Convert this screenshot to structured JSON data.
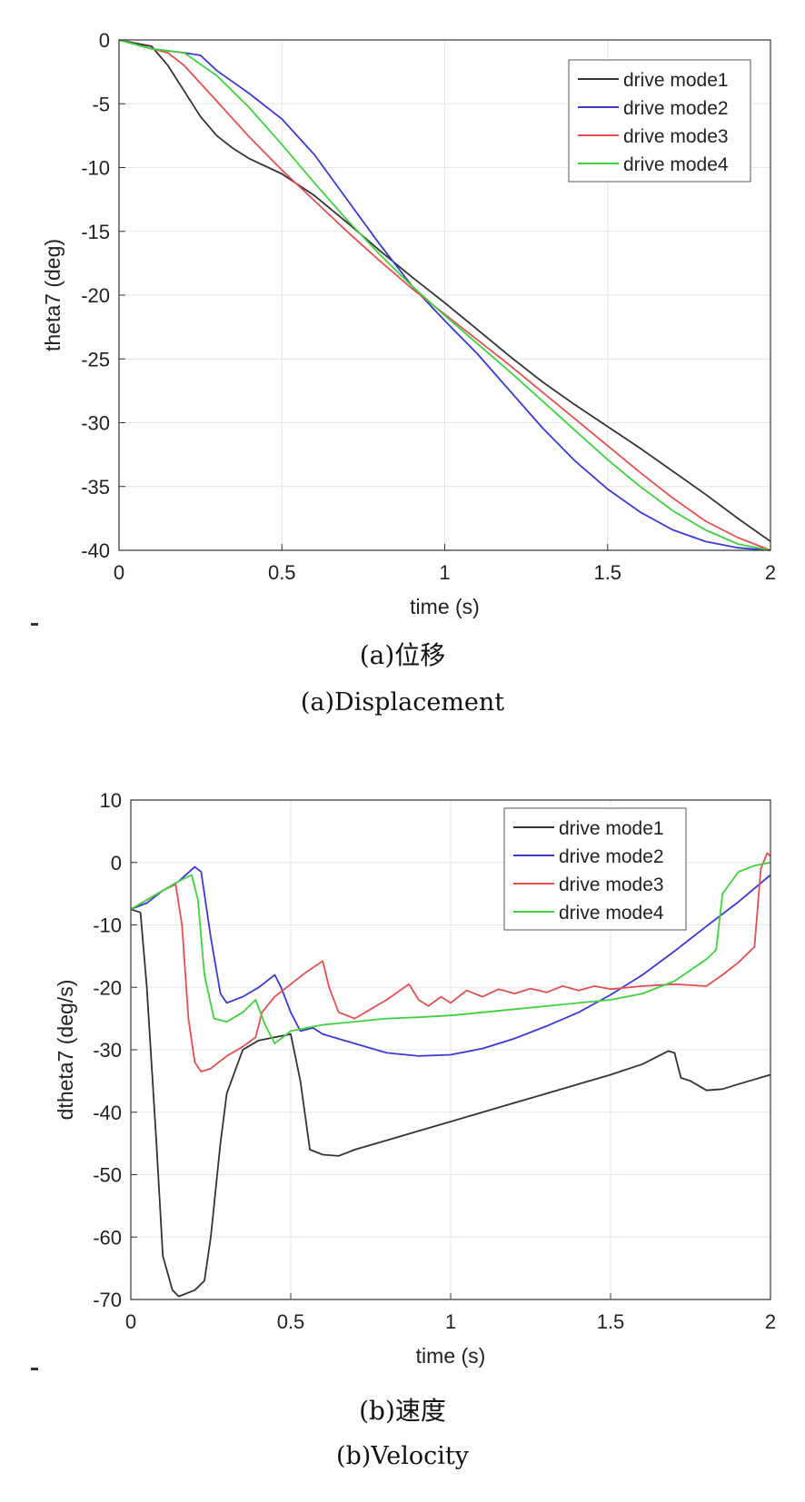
{
  "chart_data": [
    {
      "type": "line",
      "caption_cn": "(a)位移",
      "caption_en": "(a)Displacement",
      "xlabel": "time (s)",
      "ylabel": "theta7 (deg)",
      "xlim": [
        0,
        2
      ],
      "ylim": [
        -40,
        0
      ],
      "xticks": [
        0,
        0.5,
        1,
        1.5,
        2
      ],
      "xtick_labels": [
        "0",
        "0.5",
        "1",
        "1.5",
        "2"
      ],
      "yticks": [
        0,
        -5,
        -10,
        -15,
        -20,
        -25,
        -30,
        -35,
        -40
      ],
      "ytick_labels": [
        "0",
        "-5",
        "-10",
        "-15",
        "-20",
        "-25",
        "-30",
        "-35",
        "-40"
      ],
      "grid": true,
      "legend": "top-right",
      "series": [
        {
          "name": "drive mode1",
          "color": "#333333",
          "points": [
            [
              0,
              0
            ],
            [
              0.1,
              -0.5
            ],
            [
              0.15,
              -2
            ],
            [
              0.2,
              -4
            ],
            [
              0.25,
              -6
            ],
            [
              0.3,
              -7.5
            ],
            [
              0.35,
              -8.5
            ],
            [
              0.4,
              -9.3
            ],
            [
              0.5,
              -10.5
            ],
            [
              0.6,
              -12.2
            ],
            [
              0.7,
              -14.3
            ],
            [
              0.8,
              -16.5
            ],
            [
              0.9,
              -18.6
            ],
            [
              1.0,
              -20.6
            ],
            [
              1.1,
              -22.7
            ],
            [
              1.2,
              -24.8
            ],
            [
              1.3,
              -26.8
            ],
            [
              1.4,
              -28.6
            ],
            [
              1.5,
              -30.3
            ],
            [
              1.6,
              -32
            ],
            [
              1.7,
              -33.8
            ],
            [
              1.8,
              -35.6
            ],
            [
              1.9,
              -37.5
            ],
            [
              2.0,
              -39.3
            ]
          ]
        },
        {
          "name": "drive mode2",
          "color": "#3a3ad0",
          "points": [
            [
              0,
              0
            ],
            [
              0.1,
              -0.7
            ],
            [
              0.2,
              -1
            ],
            [
              0.25,
              -1.2
            ],
            [
              0.3,
              -2.4
            ],
            [
              0.4,
              -4.2
            ],
            [
              0.5,
              -6.2
            ],
            [
              0.6,
              -9
            ],
            [
              0.7,
              -12.5
            ],
            [
              0.8,
              -16
            ],
            [
              0.9,
              -19.3
            ],
            [
              1.0,
              -22
            ],
            [
              1.1,
              -24.6
            ],
            [
              1.2,
              -27.5
            ],
            [
              1.3,
              -30.4
            ],
            [
              1.4,
              -33
            ],
            [
              1.5,
              -35.2
            ],
            [
              1.6,
              -37
            ],
            [
              1.7,
              -38.4
            ],
            [
              1.8,
              -39.3
            ],
            [
              1.9,
              -39.8
            ],
            [
              2.0,
              -40
            ]
          ]
        },
        {
          "name": "drive mode3",
          "color": "#e05050",
          "points": [
            [
              0,
              0
            ],
            [
              0.1,
              -0.7
            ],
            [
              0.15,
              -1
            ],
            [
              0.2,
              -2
            ],
            [
              0.3,
              -4.8
            ],
            [
              0.4,
              -7.6
            ],
            [
              0.5,
              -10.2
            ],
            [
              0.6,
              -12.6
            ],
            [
              0.7,
              -15
            ],
            [
              0.8,
              -17.3
            ],
            [
              0.9,
              -19.5
            ],
            [
              1.0,
              -21.5
            ],
            [
              1.1,
              -23.5
            ],
            [
              1.2,
              -25.5
            ],
            [
              1.3,
              -27.6
            ],
            [
              1.4,
              -29.7
            ],
            [
              1.5,
              -31.8
            ],
            [
              1.6,
              -33.9
            ],
            [
              1.7,
              -35.9
            ],
            [
              1.8,
              -37.7
            ],
            [
              1.9,
              -39
            ],
            [
              2.0,
              -40
            ]
          ]
        },
        {
          "name": "drive mode4",
          "color": "#40d040",
          "points": [
            [
              0,
              0
            ],
            [
              0.1,
              -0.7
            ],
            [
              0.2,
              -1
            ],
            [
              0.3,
              -2.8
            ],
            [
              0.4,
              -5.3
            ],
            [
              0.5,
              -8.2
            ],
            [
              0.6,
              -11.2
            ],
            [
              0.7,
              -14.1
            ],
            [
              0.8,
              -16.8
            ],
            [
              0.9,
              -19.3
            ],
            [
              1.0,
              -21.6
            ],
            [
              1.1,
              -23.8
            ],
            [
              1.2,
              -26
            ],
            [
              1.3,
              -28.3
            ],
            [
              1.4,
              -30.6
            ],
            [
              1.5,
              -32.9
            ],
            [
              1.6,
              -35
            ],
            [
              1.7,
              -36.9
            ],
            [
              1.8,
              -38.4
            ],
            [
              1.9,
              -39.5
            ],
            [
              2.0,
              -40
            ]
          ]
        }
      ]
    },
    {
      "type": "line",
      "caption_cn": "(b)速度",
      "caption_en": "(b)Velocity",
      "xlabel": "time (s)",
      "ylabel": "dtheta7 (deg/s)",
      "xlim": [
        0,
        2
      ],
      "ylim": [
        -70,
        10
      ],
      "xticks": [
        0,
        0.5,
        1,
        1.5,
        2
      ],
      "xtick_labels": [
        "0",
        "0.5",
        "1",
        "1.5",
        "2"
      ],
      "yticks": [
        10,
        0,
        -10,
        -20,
        -30,
        -40,
        -50,
        -60,
        -70
      ],
      "ytick_labels": [
        "10",
        "0",
        "-10",
        "-20",
        "-30",
        "-40",
        "-50",
        "-60",
        "-70"
      ],
      "grid": true,
      "legend": "top-right",
      "series": [
        {
          "name": "drive mode1",
          "color": "#333333",
          "points": [
            [
              0,
              -7.5
            ],
            [
              0.03,
              -8
            ],
            [
              0.05,
              -20
            ],
            [
              0.08,
              -45
            ],
            [
              0.1,
              -63
            ],
            [
              0.13,
              -68.5
            ],
            [
              0.15,
              -69.5
            ],
            [
              0.2,
              -68.5
            ],
            [
              0.23,
              -67
            ],
            [
              0.25,
              -60
            ],
            [
              0.28,
              -45
            ],
            [
              0.3,
              -37
            ],
            [
              0.35,
              -30
            ],
            [
              0.4,
              -28.5
            ],
            [
              0.45,
              -28
            ],
            [
              0.5,
              -27.5
            ],
            [
              0.53,
              -35
            ],
            [
              0.56,
              -46
            ],
            [
              0.6,
              -46.8
            ],
            [
              0.65,
              -47
            ],
            [
              0.7,
              -46
            ],
            [
              0.8,
              -44.5
            ],
            [
              0.9,
              -43
            ],
            [
              1.0,
              -41.5
            ],
            [
              1.1,
              -40
            ],
            [
              1.2,
              -38.5
            ],
            [
              1.3,
              -37
            ],
            [
              1.4,
              -35.5
            ],
            [
              1.5,
              -34
            ],
            [
              1.6,
              -32.3
            ],
            [
              1.68,
              -30.2
            ],
            [
              1.7,
              -30.5
            ],
            [
              1.72,
              -34.5
            ],
            [
              1.75,
              -35
            ],
            [
              1.8,
              -36.5
            ],
            [
              1.85,
              -36.3
            ],
            [
              1.9,
              -35.5
            ],
            [
              2.0,
              -34
            ]
          ]
        },
        {
          "name": "drive mode2",
          "color": "#3a3ad0",
          "points": [
            [
              0,
              -7.5
            ],
            [
              0.05,
              -6.5
            ],
            [
              0.1,
              -4.5
            ],
            [
              0.15,
              -3
            ],
            [
              0.2,
              -0.7
            ],
            [
              0.22,
              -1.5
            ],
            [
              0.25,
              -12
            ],
            [
              0.28,
              -21
            ],
            [
              0.3,
              -22.5
            ],
            [
              0.35,
              -21.5
            ],
            [
              0.4,
              -20
            ],
            [
              0.45,
              -18
            ],
            [
              0.47,
              -20
            ],
            [
              0.5,
              -24
            ],
            [
              0.53,
              -27
            ],
            [
              0.57,
              -26.5
            ],
            [
              0.6,
              -27.5
            ],
            [
              0.7,
              -29
            ],
            [
              0.8,
              -30.5
            ],
            [
              0.9,
              -31
            ],
            [
              1.0,
              -30.8
            ],
            [
              1.1,
              -29.8
            ],
            [
              1.2,
              -28.2
            ],
            [
              1.3,
              -26.2
            ],
            [
              1.4,
              -24
            ],
            [
              1.5,
              -21.2
            ],
            [
              1.6,
              -18
            ],
            [
              1.7,
              -14.2
            ],
            [
              1.8,
              -10.2
            ],
            [
              1.9,
              -6.3
            ],
            [
              2.0,
              -2
            ]
          ]
        },
        {
          "name": "drive mode3",
          "color": "#e05050",
          "points": [
            [
              0,
              -7.5
            ],
            [
              0.05,
              -6
            ],
            [
              0.1,
              -4.5
            ],
            [
              0.14,
              -3.5
            ],
            [
              0.16,
              -10
            ],
            [
              0.18,
              -25
            ],
            [
              0.2,
              -32
            ],
            [
              0.22,
              -33.5
            ],
            [
              0.25,
              -33
            ],
            [
              0.3,
              -31
            ],
            [
              0.35,
              -29.5
            ],
            [
              0.39,
              -28
            ],
            [
              0.41,
              -24
            ],
            [
              0.45,
              -21.5
            ],
            [
              0.5,
              -19.5
            ],
            [
              0.55,
              -17.5
            ],
            [
              0.6,
              -15.8
            ],
            [
              0.62,
              -20
            ],
            [
              0.65,
              -24
            ],
            [
              0.7,
              -25
            ],
            [
              0.75,
              -23.5
            ],
            [
              0.8,
              -22
            ],
            [
              0.87,
              -19.5
            ],
            [
              0.9,
              -22
            ],
            [
              0.93,
              -23
            ],
            [
              0.97,
              -21.5
            ],
            [
              1.0,
              -22.5
            ],
            [
              1.05,
              -20.5
            ],
            [
              1.1,
              -21.5
            ],
            [
              1.15,
              -20.3
            ],
            [
              1.2,
              -21
            ],
            [
              1.25,
              -20.2
            ],
            [
              1.3,
              -20.8
            ],
            [
              1.35,
              -19.8
            ],
            [
              1.4,
              -20.5
            ],
            [
              1.45,
              -19.8
            ],
            [
              1.5,
              -20.3
            ],
            [
              1.6,
              -19.8
            ],
            [
              1.7,
              -19.5
            ],
            [
              1.8,
              -19.8
            ],
            [
              1.85,
              -18
            ],
            [
              1.9,
              -16
            ],
            [
              1.95,
              -13.5
            ],
            [
              1.97,
              -1
            ],
            [
              1.99,
              1.5
            ],
            [
              2.0,
              1
            ]
          ]
        },
        {
          "name": "drive mode4",
          "color": "#40d040",
          "points": [
            [
              0,
              -7.5
            ],
            [
              0.05,
              -6
            ],
            [
              0.1,
              -4.5
            ],
            [
              0.15,
              -3
            ],
            [
              0.19,
              -2
            ],
            [
              0.21,
              -6
            ],
            [
              0.23,
              -18
            ],
            [
              0.26,
              -25
            ],
            [
              0.3,
              -25.5
            ],
            [
              0.35,
              -24
            ],
            [
              0.39,
              -22
            ],
            [
              0.42,
              -26
            ],
            [
              0.45,
              -29
            ],
            [
              0.5,
              -27
            ],
            [
              0.55,
              -26.5
            ],
            [
              0.6,
              -26
            ],
            [
              0.7,
              -25.5
            ],
            [
              0.8,
              -25
            ],
            [
              0.9,
              -24.8
            ],
            [
              1.0,
              -24.5
            ],
            [
              1.1,
              -24
            ],
            [
              1.2,
              -23.5
            ],
            [
              1.3,
              -23
            ],
            [
              1.4,
              -22.5
            ],
            [
              1.5,
              -22
            ],
            [
              1.6,
              -21
            ],
            [
              1.7,
              -19
            ],
            [
              1.8,
              -15.5
            ],
            [
              1.83,
              -14
            ],
            [
              1.85,
              -5
            ],
            [
              1.9,
              -1.5
            ],
            [
              1.95,
              -0.5
            ],
            [
              2.0,
              0
            ]
          ]
        }
      ]
    }
  ]
}
